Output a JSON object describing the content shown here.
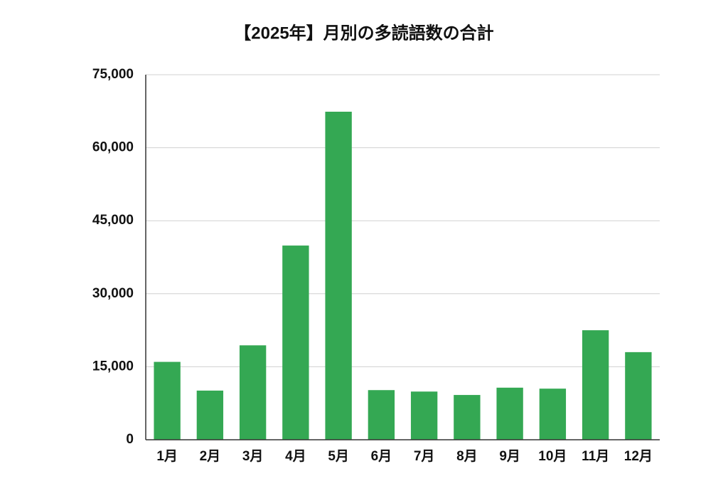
{
  "chart_data": {
    "type": "bar",
    "title": "【2025年】月別の多読語数の合計",
    "categories": [
      "1月",
      "2月",
      "3月",
      "4月",
      "5月",
      "6月",
      "7月",
      "8月",
      "9月",
      "10月",
      "11月",
      "12月"
    ],
    "values": [
      16000,
      10100,
      19400,
      39900,
      67400,
      10200,
      9900,
      9200,
      10700,
      10500,
      22500,
      18000
    ],
    "color": "#34a853",
    "ylim": [
      0,
      75000
    ],
    "yticks": [
      0,
      {
        "value": 15000,
        "label": "15,000"
      },
      {
        "value": 30000,
        "label": "30,000"
      },
      {
        "value": 45000,
        "label": "45,000"
      },
      {
        "value": 60000,
        "label": "60,000"
      },
      {
        "value": 75000,
        "label": "75,000"
      }
    ],
    "grid": true
  }
}
